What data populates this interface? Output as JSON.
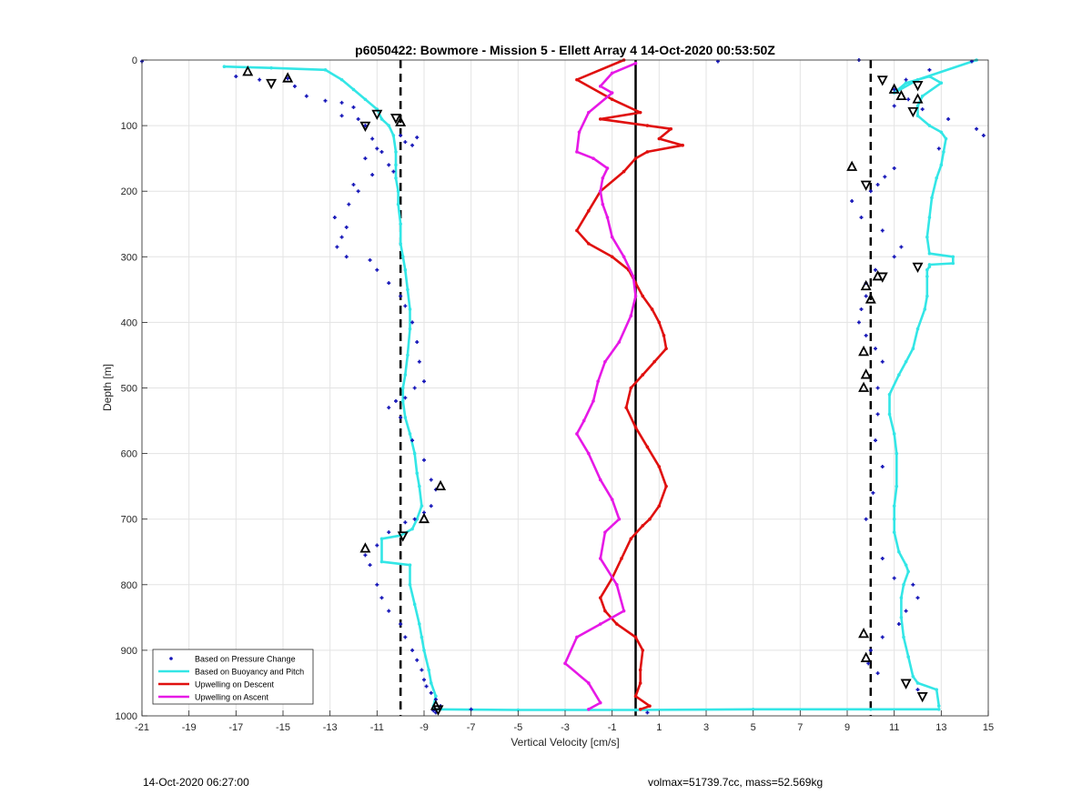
{
  "footer": {
    "timestamp": "14-Oct-2020 06:27:00",
    "info": "volmax=51739.7cc, mass=52.569kg"
  },
  "colors": {
    "pressure": "#1515b8",
    "buoyancy": "#33e6e6",
    "descent": "#e0100f",
    "ascent": "#e619e6",
    "reference": "#000000"
  },
  "chart_data": {
    "type": "line",
    "title": "p6050422: Bowmore - Mission 5 - Ellett Array 4 14-Oct-2020 00:53:50Z",
    "xlabel": "Vertical Velocity [cm/s]",
    "ylabel": "Depth [m]",
    "xlim": [
      -21,
      15
    ],
    "ylim": [
      0,
      1000
    ],
    "y_reversed": true,
    "grid": true,
    "x_ticks": [
      "-21",
      "-19",
      "-17",
      "-15",
      "-13",
      "-11",
      "-9",
      "-7",
      "-5",
      "-3",
      "-1",
      "1",
      "3",
      "5",
      "7",
      "9",
      "11",
      "13",
      "15"
    ],
    "y_ticks": [
      "0",
      "100",
      "200",
      "300",
      "400",
      "500",
      "600",
      "700",
      "800",
      "900",
      "1000"
    ],
    "legend_position": "bottom-left",
    "legend": [
      "Based on Pressure Change",
      "Based on Buoyancy and Pitch",
      "Upwelling on Descent",
      "Upwelling on Ascent"
    ],
    "reference_lines": [
      {
        "x": -10,
        "style": "dashed"
      },
      {
        "x": 0,
        "style": "solid"
      },
      {
        "x": 10,
        "style": "dashed"
      }
    ],
    "series": [
      {
        "name": "Based on Buoyancy and Pitch",
        "role": "descent",
        "x": [
          -17.5,
          -15.5,
          -13.2,
          -12.5,
          -12.0,
          -11.5,
          -11.0,
          -10.8,
          -10.5,
          -10.3,
          -10.2,
          -10.2,
          -10.2,
          -10.1,
          -10.1,
          -10.0,
          -10.0,
          -9.9,
          -9.8,
          -9.7,
          -9.6,
          -9.6,
          -9.7,
          -9.8,
          -9.9,
          -9.9,
          -9.8,
          -9.6,
          -9.4,
          -9.3,
          -9.2,
          -9.1,
          -9.3,
          -9.5,
          -10.0,
          -10.8,
          -10.8,
          -9.6,
          -9.6,
          -9.4,
          -9.2,
          -9.1,
          -9.0,
          -8.8,
          -8.7,
          -8.5,
          -8.6,
          -8.6
        ],
        "y": [
          10,
          12,
          15,
          30,
          45,
          60,
          75,
          90,
          100,
          115,
          140,
          160,
          180,
          200,
          220,
          250,
          280,
          300,
          320,
          350,
          380,
          410,
          450,
          480,
          500,
          520,
          545,
          570,
          600,
          630,
          650,
          680,
          700,
          715,
          725,
          730,
          765,
          770,
          800,
          830,
          860,
          880,
          900,
          930,
          950,
          970,
          985,
          990
        ]
      },
      {
        "name": "Based on Buoyancy and Pitch",
        "role": "bottom-turn",
        "x": [
          -8.6,
          -5.0,
          0.0,
          5.0,
          10.0,
          12.9
        ],
        "y": [
          990,
          991,
          991,
          990,
          990,
          990
        ]
      },
      {
        "name": "Based on Buoyancy and Pitch",
        "role": "ascent",
        "x": [
          12.9,
          12.8,
          12.0,
          11.8,
          11.6,
          11.4,
          11.3,
          11.3,
          11.4,
          11.6,
          11.5,
          11.2,
          11.0,
          11.0,
          11.0,
          11.1,
          11.1,
          11.0,
          10.8,
          10.8,
          11.2,
          11.5,
          11.8,
          12.0,
          12.3,
          12.4,
          12.4,
          12.4,
          12.5,
          12.5,
          13.5,
          13.5,
          12.5,
          12.4,
          12.5,
          12.6,
          12.8,
          13.0,
          13.1,
          13.2,
          13.0,
          12.5,
          12.0,
          12.0,
          12.2,
          13.0,
          12.5,
          11.5,
          11.0,
          12.0,
          14.5
        ],
        "y": [
          985,
          960,
          950,
          940,
          910,
          880,
          850,
          820,
          800,
          780,
          770,
          750,
          720,
          700,
          680,
          650,
          600,
          570,
          540,
          510,
          480,
          460,
          440,
          410,
          380,
          360,
          330,
          320,
          315,
          312,
          310,
          300,
          295,
          270,
          240,
          210,
          180,
          160,
          140,
          120,
          110,
          100,
          85,
          70,
          55,
          35,
          25,
          35,
          50,
          30,
          0
        ]
      },
      {
        "name": "Upwelling on Descent",
        "x": [
          -0.5,
          -2.5,
          -1.0,
          0.2,
          -1.5,
          0.5,
          1.5,
          1.0,
          2.0,
          0.5,
          0.0,
          -0.5,
          -1.5,
          -2.0,
          -2.5,
          -2.0,
          -1.0,
          -0.3,
          0.0,
          0.3,
          0.7,
          1.0,
          1.2,
          1.3,
          0.8,
          0.3,
          -0.2,
          -0.4,
          0.0,
          0.5,
          1.0,
          1.3,
          1.0,
          0.6,
          0.3,
          -0.2,
          -0.6,
          -1.0,
          -1.5,
          -1.3,
          -0.8,
          0.0,
          0.3,
          0.2,
          0.2,
          0.0,
          0.6,
          0.2
        ],
        "y": [
          0,
          30,
          60,
          80,
          90,
          100,
          105,
          120,
          130,
          140,
          150,
          170,
          200,
          230,
          260,
          280,
          300,
          320,
          340,
          360,
          380,
          400,
          420,
          440,
          460,
          480,
          500,
          530,
          560,
          590,
          620,
          650,
          680,
          700,
          710,
          730,
          760,
          790,
          820,
          840,
          860,
          880,
          900,
          930,
          950,
          970,
          985,
          990
        ]
      },
      {
        "name": "Upwelling on Ascent",
        "x": [
          -2.0,
          -1.5,
          -2.0,
          -3.0,
          -2.5,
          -1.5,
          -0.5,
          -0.8,
          -1.5,
          -1.3,
          -0.7,
          -1.0,
          -1.5,
          -2.0,
          -2.5,
          -2.2,
          -1.8,
          -1.6,
          -1.3,
          -0.7,
          -0.2,
          0.0,
          -0.1,
          -0.5,
          -1.0,
          -1.2,
          -1.4,
          -1.5,
          -1.4,
          -1.2,
          -1.8,
          -2.5,
          -2.4,
          -2.0,
          -1.0,
          -1.5,
          -1.0,
          0.0
        ],
        "y": [
          990,
          980,
          950,
          920,
          880,
          860,
          840,
          800,
          760,
          720,
          700,
          670,
          640,
          600,
          570,
          550,
          520,
          490,
          460,
          430,
          390,
          360,
          330,
          300,
          270,
          240,
          220,
          200,
          180,
          165,
          150,
          140,
          110,
          80,
          50,
          40,
          20,
          5
        ]
      },
      {
        "name": "Based on Pressure Change",
        "type": "scatter",
        "x": [
          -21.0,
          -17.0,
          -16.0,
          -14.8,
          -14.5,
          -14.0,
          -13.2,
          -12.5,
          -12.0,
          -12.5,
          -11.8,
          -11.5,
          -11.2,
          -11.0,
          -10.8,
          -10.5,
          -10.3,
          -10.0,
          -9.8,
          -9.5,
          -9.3,
          -11.5,
          -11.2,
          -12.0,
          -11.8,
          -12.2,
          -12.8,
          -12.3,
          -12.5,
          -12.7,
          -12.3,
          -11.3,
          -11.0,
          -10.5,
          -10.0,
          -9.8,
          -9.5,
          -9.3,
          -9.2,
          -9.0,
          -9.4,
          -9.8,
          -10.2,
          -10.5,
          -10.0,
          -9.5,
          -9.0,
          -8.7,
          -8.5,
          -8.7,
          -9.0,
          -9.4,
          -9.8,
          -10.5,
          -11.0,
          -11.5,
          -11.3,
          -11.0,
          -10.8,
          -10.5,
          -10.0,
          -9.8,
          -9.5,
          -9.3,
          -9.1,
          -9.0,
          -8.9,
          -8.7,
          -8.5,
          -8.3,
          -8.6,
          14.3,
          12.5,
          11.5,
          11.0,
          11.0,
          11.6,
          12.2,
          13.3,
          14.5,
          14.8,
          12.9,
          11.0,
          10.6,
          10.3,
          10.0,
          9.2,
          9.6,
          10.5,
          11.3,
          11.0,
          10.2,
          9.8,
          9.8,
          9.6,
          9.5,
          9.8,
          10.2,
          10.5,
          10.3,
          10.3,
          10.2,
          10.5,
          10.1,
          9.8,
          10.5,
          11.0,
          11.8,
          12.0,
          11.5,
          11.2,
          10.5,
          10.0,
          9.9,
          10.3,
          12.0,
          -8.5,
          -7.0,
          0.5,
          3.5,
          9.5
        ],
        "y": [
          2,
          25,
          30,
          28,
          40,
          55,
          62,
          65,
          72,
          85,
          90,
          100,
          120,
          135,
          140,
          160,
          170,
          115,
          125,
          130,
          118,
          150,
          175,
          190,
          200,
          220,
          240,
          255,
          270,
          285,
          300,
          305,
          320,
          340,
          360,
          375,
          400,
          430,
          460,
          490,
          500,
          515,
          520,
          530,
          545,
          580,
          610,
          640,
          655,
          680,
          690,
          700,
          705,
          720,
          740,
          755,
          770,
          800,
          820,
          840,
          860,
          880,
          900,
          915,
          930,
          945,
          955,
          965,
          975,
          985,
          992,
          2,
          15,
          30,
          45,
          70,
          60,
          75,
          90,
          105,
          115,
          135,
          165,
          178,
          190,
          200,
          215,
          240,
          260,
          285,
          300,
          320,
          340,
          360,
          380,
          400,
          420,
          440,
          460,
          500,
          540,
          580,
          620,
          660,
          700,
          760,
          790,
          800,
          820,
          840,
          860,
          880,
          900,
          920,
          935,
          960,
          995,
          990,
          995,
          2,
          0
        ]
      },
      {
        "name": "markers-up",
        "type": "scatter",
        "x": [
          -16.5,
          -14.8,
          -10.0,
          -8.3,
          -9.0,
          -11.5,
          9.2,
          10.3,
          9.8,
          10.0,
          9.7,
          9.8,
          9.7,
          11.0,
          11.3,
          12.0,
          9.7,
          9.8,
          -8.5
        ],
        "y": [
          18,
          28,
          95,
          650,
          700,
          745,
          163,
          330,
          345,
          365,
          445,
          480,
          500,
          45,
          55,
          60,
          875,
          912,
          985
        ]
      },
      {
        "name": "markers-down",
        "type": "scatter",
        "x": [
          -15.5,
          -11.0,
          -10.2,
          -11.5,
          -9.9,
          10.5,
          12.0,
          11.8,
          12.0,
          10.5,
          9.8,
          11.5,
          12.2,
          -8.4
        ],
        "y": [
          35,
          82,
          88,
          100,
          725,
          30,
          38,
          78,
          315,
          330,
          190,
          950,
          970,
          990
        ]
      }
    ]
  }
}
